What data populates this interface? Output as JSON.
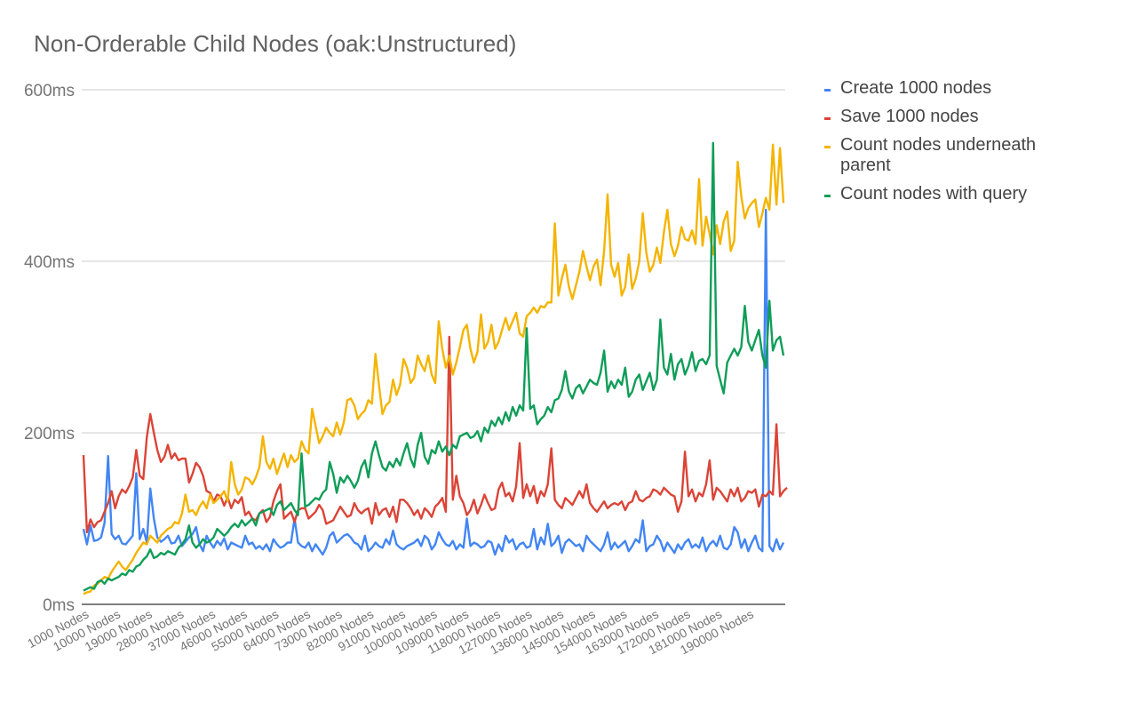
{
  "chart_data": {
    "type": "line",
    "title": "Non-Orderable Child Nodes (oak:Unstructured)",
    "xlabel": "",
    "ylabel": "",
    "ylim": [
      0,
      600
    ],
    "yticks": [
      "0ms",
      "200ms",
      "400ms",
      "600ms"
    ],
    "ytick_values": [
      0,
      200,
      400,
      600
    ],
    "grid": true,
    "legend_position": "right",
    "x_tick_labels": [
      "1000 Nodes",
      "10000 Nodes",
      "19000 Nodes",
      "28000 Nodes",
      "37000 Nodes",
      "46000 Nodes",
      "55000 Nodes",
      "64000 Nodes",
      "73000 Nodes",
      "82000 Nodes",
      "91000 Nodes",
      "100000 Nodes",
      "109000 Nodes",
      "118000 Nodes",
      "127000 Nodes",
      "136000 Nodes",
      "145000 Nodes",
      "154000 Nodes",
      "163000 Nodes",
      "172000 Nodes",
      "181000 Nodes",
      "190000 Nodes"
    ],
    "x_points": 200,
    "x_start": 1000,
    "x_step": 1000,
    "series": [
      {
        "name": "Create 1000 nodes",
        "color": "#4285f4",
        "values": [
          88,
          70,
          92,
          74,
          75,
          78,
          95,
          173,
          82,
          76,
          80,
          71,
          70,
          75,
          80,
          153,
          76,
          88,
          72,
          135,
          100,
          78,
          73,
          76,
          80,
          71,
          72,
          80,
          68,
          73,
          78,
          82,
          90,
          70,
          62,
          80,
          72,
          66,
          74,
          69,
          77,
          64,
          72,
          70,
          68,
          66,
          80,
          70,
          72,
          65,
          68,
          64,
          70,
          62,
          76,
          70,
          66,
          68,
          72,
          72,
          100,
          72,
          68,
          66,
          72,
          62,
          70,
          64,
          58,
          66,
          80,
          84,
          72,
          76,
          80,
          82,
          78,
          72,
          70,
          64,
          80,
          62,
          66,
          72,
          68,
          66,
          76,
          70,
          86,
          70,
          66,
          64,
          68,
          70,
          72,
          76,
          68,
          80,
          76,
          64,
          70,
          84,
          76,
          70,
          68,
          74,
          64,
          70,
          66,
          100,
          68,
          72,
          70,
          66,
          68,
          74,
          72,
          58,
          70,
          62,
          80,
          72,
          76,
          64,
          70,
          72,
          66,
          68,
          88,
          64,
          78,
          70,
          94,
          68,
          72,
          80,
          60,
          72,
          76,
          72,
          68,
          70,
          62,
          80,
          74,
          70,
          66,
          62,
          70,
          84,
          64,
          72,
          66,
          70,
          74,
          62,
          68,
          76,
          72,
          98,
          62,
          68,
          70,
          80,
          74,
          62,
          72,
          66,
          60,
          70,
          64,
          72,
          76,
          66,
          70,
          66,
          78,
          62,
          70,
          74,
          68,
          80,
          66,
          64,
          70,
          90,
          84,
          66,
          76,
          62,
          72,
          80,
          66,
          62,
          460,
          68,
          62,
          76,
          64,
          72
        ]
      },
      {
        "name": "Save 1000 nodes",
        "color": "#db4437",
        "values": [
          174,
          84,
          99,
          90,
          96,
          98,
          108,
          118,
          132,
          112,
          126,
          134,
          130,
          138,
          148,
          180,
          150,
          146,
          195,
          222,
          200,
          180,
          166,
          172,
          186,
          170,
          176,
          168,
          170,
          170,
          142,
          152,
          165,
          160,
          150,
          132,
          130,
          120,
          128,
          126,
          115,
          125,
          112,
          122,
          118,
          125,
          104,
          108,
          100,
          98,
          106,
          110,
          96,
          102,
          120,
          132,
          140,
          100,
          104,
          108,
          96,
          110,
          112,
          112,
          100,
          104,
          108,
          116,
          110,
          94,
          96,
          98,
          106,
          114,
          108,
          102,
          104,
          118,
          110,
          106,
          110,
          112,
          94,
          118,
          104,
          110,
          112,
          102,
          114,
          96,
          122,
          122,
          118,
          112,
          104,
          110,
          100,
          112,
          108,
          102,
          114,
          118,
          124,
          108,
          312,
          122,
          150,
          126,
          118,
          104,
          110,
          122,
          106,
          116,
          128,
          118,
          110,
          112,
          134,
          142,
          126,
          130,
          120,
          138,
          188,
          124,
          140,
          126,
          138,
          118,
          132,
          126,
          140,
          182,
          122,
          116,
          112,
          124,
          120,
          116,
          124,
          132,
          124,
          140,
          118,
          112,
          108,
          114,
          120,
          112,
          116,
          118,
          116,
          120,
          110,
          118,
          120,
          132,
          122,
          120,
          124,
          126,
          134,
          132,
          128,
          136,
          132,
          128,
          126,
          108,
          120,
          178,
          126,
          134,
          120,
          130,
          126,
          140,
          168,
          122,
          136,
          132,
          126,
          120,
          134,
          126,
          136,
          120,
          124,
          132,
          130,
          134,
          114,
          128,
          126,
          132,
          128,
          210,
          126,
          132,
          136
        ]
      },
      {
        "name": "Count nodes underneath parent",
        "color": "#f4b400",
        "values": [
          12,
          14,
          15,
          22,
          24,
          28,
          32,
          30,
          38,
          44,
          50,
          44,
          40,
          46,
          52,
          60,
          66,
          72,
          70,
          80,
          76,
          72,
          80,
          84,
          88,
          90,
          96,
          94,
          106,
          128,
          108,
          110,
          104,
          114,
          120,
          112,
          128,
          118,
          122,
          126,
          132,
          120,
          166,
          140,
          128,
          134,
          148,
          146,
          140,
          148,
          160,
          196,
          166,
          158,
          170,
          152,
          164,
          176,
          160,
          174,
          166,
          170,
          190,
          180,
          176,
          228,
          208,
          188,
          196,
          206,
          200,
          196,
          212,
          198,
          212,
          238,
          240,
          232,
          216,
          222,
          226,
          238,
          234,
          292,
          256,
          222,
          232,
          236,
          262,
          244,
          256,
          286,
          276,
          258,
          264,
          290,
          280,
          272,
          290,
          268,
          258,
          330,
          298,
          276,
          290,
          268,
          282,
          300,
          320,
          326,
          298,
          282,
          294,
          338,
          298,
          306,
          326,
          298,
          306,
          320,
          334,
          320,
          330,
          340,
          316,
          312,
          336,
          340,
          346,
          340,
          348,
          346,
          352,
          352,
          444,
          360,
          380,
          396,
          370,
          356,
          372,
          388,
          412,
          394,
          378,
          394,
          402,
          372,
          412,
          478,
          396,
          382,
          398,
          360,
          370,
          408,
          368,
          380,
          400,
          456,
          410,
          388,
          396,
          416,
          398,
          434,
          460,
          420,
          406,
          418,
          440,
          426,
          424,
          436,
          420,
          496,
          418,
          452,
          432,
          408,
          442,
          420,
          446,
          458,
          412,
          424,
          516,
          476,
          450,
          462,
          468,
          472,
          440,
          456,
          474,
          460,
          536,
          466,
          532,
          468
        ]
      },
      {
        "name": "Count nodes with query",
        "color": "#0f9d58",
        "values": [
          16,
          18,
          20,
          18,
          26,
          28,
          24,
          30,
          28,
          30,
          32,
          36,
          34,
          40,
          38,
          44,
          46,
          52,
          56,
          64,
          54,
          56,
          60,
          58,
          62,
          60,
          58,
          66,
          70,
          76,
          92,
          72,
          66,
          70,
          76,
          72,
          74,
          78,
          88,
          84,
          80,
          84,
          90,
          94,
          90,
          98,
          92,
          96,
          100,
          92,
          106,
          108,
          110,
          112,
          104,
          116,
          120,
          110,
          114,
          118,
          110,
          104,
          176,
          114,
          116,
          120,
          124,
          122,
          130,
          134,
          166,
          152,
          130,
          148,
          142,
          150,
          144,
          136,
          144,
          160,
          168,
          148,
          176,
          190,
          174,
          160,
          156,
          166,
          160,
          170,
          162,
          176,
          188,
          170,
          160,
          186,
          200,
          172,
          164,
          180,
          176,
          190,
          178,
          184,
          174,
          186,
          182,
          196,
          198,
          200,
          194,
          196,
          202,
          190,
          206,
          200,
          214,
          208,
          218,
          210,
          224,
          214,
          230,
          220,
          232,
          226,
          322,
          228,
          232,
          210,
          216,
          220,
          230,
          224,
          238,
          240,
          250,
          272,
          248,
          240,
          252,
          256,
          246,
          254,
          262,
          258,
          256,
          270,
          296,
          248,
          260,
          252,
          262,
          256,
          276,
          242,
          248,
          262,
          268,
          250,
          260,
          270,
          250,
          262,
          332,
          276,
          268,
          292,
          262,
          280,
          286,
          268,
          278,
          294,
          272,
          284,
          286,
          280,
          290,
          538,
          278,
          262,
          246,
          282,
          290,
          298,
          290,
          300,
          348,
          306,
          296,
          308,
          320,
          290,
          276,
          354,
          296,
          308,
          312,
          290
        ]
      }
    ]
  }
}
